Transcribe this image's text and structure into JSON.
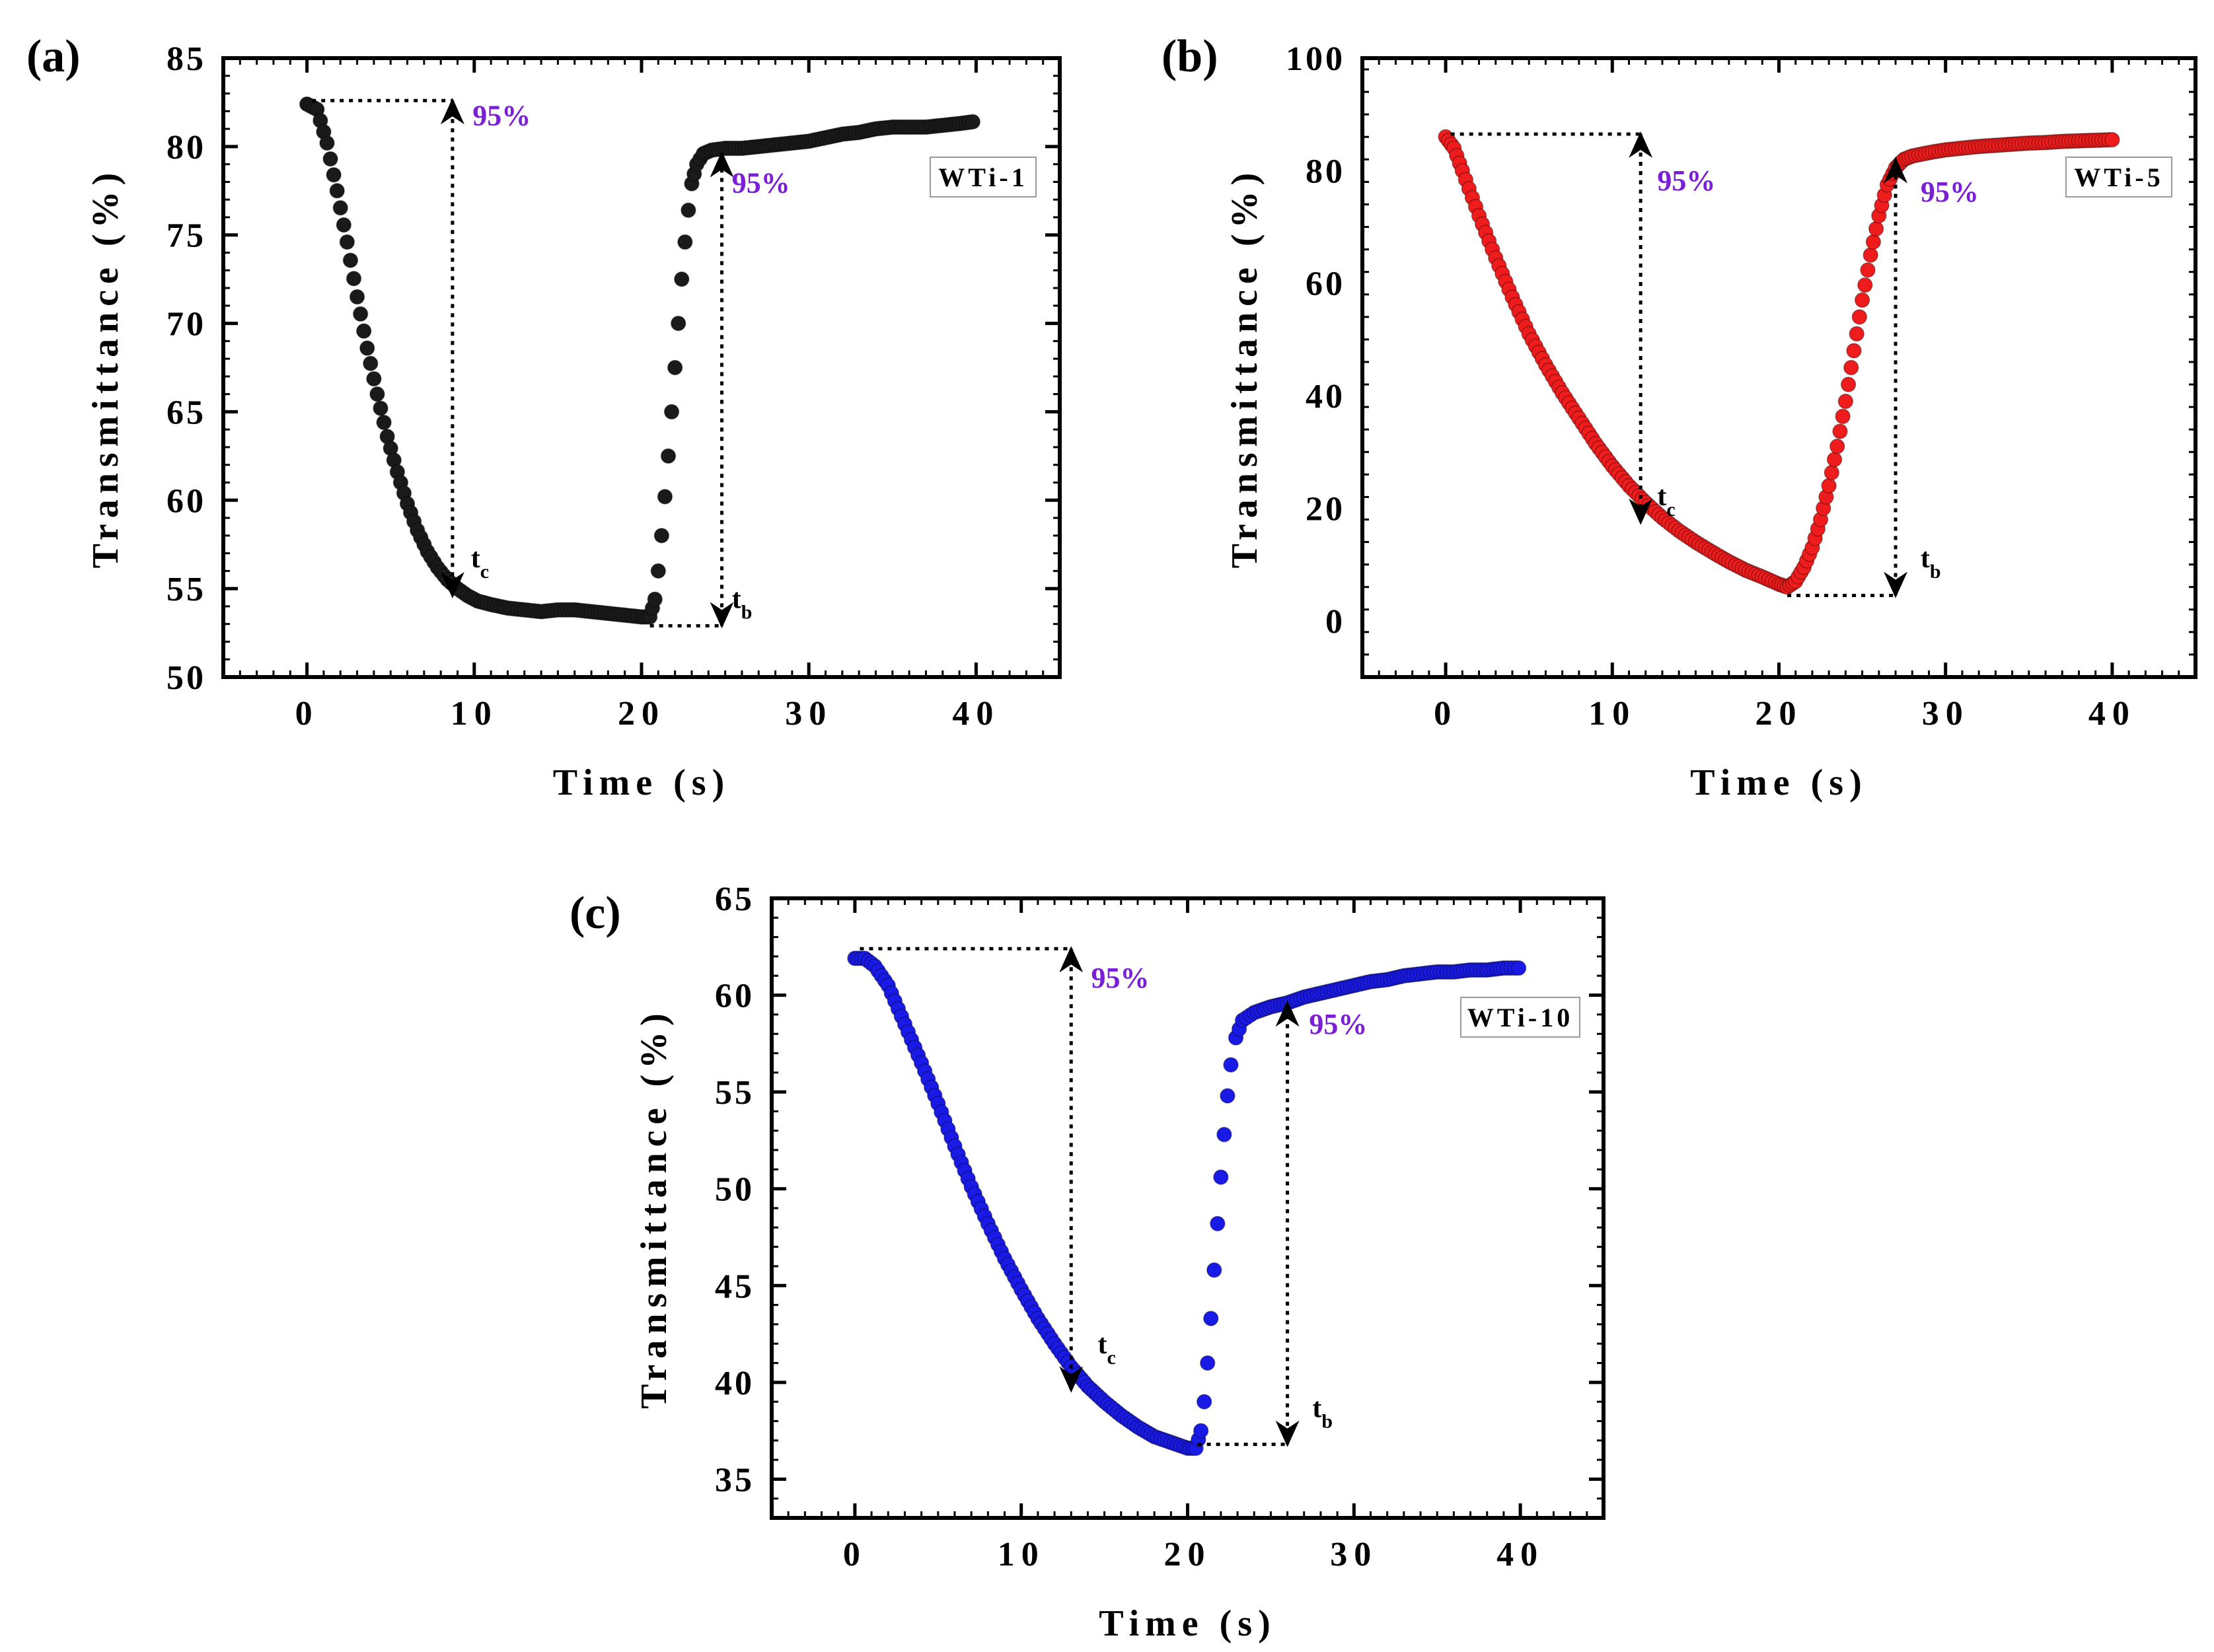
{
  "chart_data": [
    {
      "id": "a",
      "panel_label": "(a)",
      "type": "scatter",
      "sample": "WTi-1",
      "color": "#1a1a1a",
      "xlabel": "Time (s)",
      "ylabel": "Transmittance (%)",
      "xlim": [
        -5,
        45
      ],
      "ylim": [
        50,
        85
      ],
      "xticks": [
        0,
        10,
        20,
        30,
        40
      ],
      "yticks": [
        50,
        55,
        60,
        65,
        70,
        75,
        80,
        85
      ],
      "series_points": [
        [
          0,
          82.4
        ],
        [
          0.6,
          82.1
        ],
        [
          1.2,
          80.2
        ],
        [
          1.8,
          77.5
        ],
        [
          2.4,
          74.6
        ],
        [
          3,
          71.5
        ],
        [
          3.6,
          68.6
        ],
        [
          4.2,
          66
        ],
        [
          4.8,
          63.6
        ],
        [
          5.4,
          61.6
        ],
        [
          6,
          59.8
        ],
        [
          6.6,
          58.3
        ],
        [
          7.2,
          57.1
        ],
        [
          7.8,
          56.2
        ],
        [
          8.4,
          55.5
        ],
        [
          9,
          55
        ],
        [
          9.6,
          54.6
        ],
        [
          10.2,
          54.3
        ],
        [
          11,
          54.1
        ],
        [
          12,
          53.9
        ],
        [
          13,
          53.8
        ],
        [
          14,
          53.7
        ],
        [
          15,
          53.8
        ],
        [
          16,
          53.8
        ],
        [
          17,
          53.7
        ],
        [
          18,
          53.6
        ],
        [
          19,
          53.5
        ],
        [
          20,
          53.4
        ],
        [
          20.5,
          53.4
        ],
        [
          20.8,
          54.4
        ],
        [
          21.0,
          56
        ],
        [
          21.2,
          58
        ],
        [
          21.4,
          60.2
        ],
        [
          21.6,
          62.5
        ],
        [
          21.8,
          65
        ],
        [
          22.0,
          67.5
        ],
        [
          22.2,
          70
        ],
        [
          22.4,
          72.5
        ],
        [
          22.6,
          74.6
        ],
        [
          22.8,
          76.4
        ],
        [
          23.0,
          77.9
        ],
        [
          23.3,
          79
        ],
        [
          23.7,
          79.6
        ],
        [
          24.2,
          79.8
        ],
        [
          25,
          79.9
        ],
        [
          26,
          79.9
        ],
        [
          27,
          80
        ],
        [
          28,
          80.1
        ],
        [
          29,
          80.2
        ],
        [
          30,
          80.3
        ],
        [
          31,
          80.5
        ],
        [
          32,
          80.7
        ],
        [
          33,
          80.8
        ],
        [
          34,
          81
        ],
        [
          35,
          81.1
        ],
        [
          36,
          81.1
        ],
        [
          37,
          81.1
        ],
        [
          38,
          81.2
        ],
        [
          39,
          81.3
        ],
        [
          39.8,
          81.4
        ]
      ],
      "ann_baseline_x": [
        0.3,
        8.7
      ],
      "annotations": [
        {
          "text": "95%",
          "x": 8.7,
          "y_from": 82.6,
          "y_to": 54.6,
          "label_x": 9.9,
          "label_y": 81.2,
          "tlab": "t",
          "tsub": "c",
          "tlab_x": 9.8,
          "tlab_y": 56.2
        },
        {
          "text": "95%",
          "x": 24.8,
          "y_from": 52.9,
          "y_to": 79.6,
          "label_x": 25.4,
          "label_y": 77.4,
          "tlab": "t",
          "tsub": "b",
          "tlab_x": 25.4,
          "tlab_y": 53.9,
          "base_from": 20.5
        }
      ]
    },
    {
      "id": "b",
      "panel_label": "(b)",
      "type": "scatter",
      "sample": "WTi-5",
      "color": "#ee1c1c",
      "xlabel": "Time (s)",
      "ylabel": "Transmittance (%)",
      "xlim": [
        -5,
        45
      ],
      "ylim": [
        -10,
        100
      ],
      "xticks": [
        0,
        10,
        20,
        30,
        40
      ],
      "yticks": [
        0,
        20,
        40,
        60,
        80,
        100
      ],
      "series_points": [
        [
          0,
          86
        ],
        [
          0.5,
          84
        ],
        [
          1,
          80
        ],
        [
          2,
          72
        ],
        [
          3,
          64.5
        ],
        [
          4,
          57.5
        ],
        [
          5,
          51
        ],
        [
          6,
          45.5
        ],
        [
          7,
          40.5
        ],
        [
          8,
          36
        ],
        [
          9,
          31.5
        ],
        [
          10,
          27.5
        ],
        [
          11,
          24
        ],
        [
          12,
          21
        ],
        [
          13,
          18.3
        ],
        [
          14,
          16
        ],
        [
          15,
          14
        ],
        [
          16,
          12.2
        ],
        [
          17,
          10.5
        ],
        [
          18,
          9
        ],
        [
          19,
          7.8
        ],
        [
          20,
          6.5
        ],
        [
          20.5,
          6
        ],
        [
          21,
          7
        ],
        [
          21.5,
          9.5
        ],
        [
          22,
          13
        ],
        [
          22.5,
          18
        ],
        [
          23,
          24
        ],
        [
          23.5,
          31
        ],
        [
          24,
          39
        ],
        [
          24.5,
          48
        ],
        [
          25,
          57
        ],
        [
          25.5,
          65
        ],
        [
          26,
          72
        ],
        [
          26.5,
          77.5
        ],
        [
          27,
          80.5
        ],
        [
          27.5,
          82
        ],
        [
          28,
          82.6
        ],
        [
          29,
          83.2
        ],
        [
          30,
          83.7
        ],
        [
          31,
          84
        ],
        [
          32,
          84.3
        ],
        [
          33,
          84.5
        ],
        [
          34,
          84.7
        ],
        [
          35,
          84.9
        ],
        [
          36,
          85
        ],
        [
          37,
          85.2
        ],
        [
          38,
          85.3
        ],
        [
          39,
          85.4
        ],
        [
          40,
          85.5
        ]
      ],
      "ann_baseline_x": [
        0.3,
        11.7
      ],
      "annotations": [
        {
          "text": "95%",
          "x": 11.7,
          "y_from": 86.5,
          "y_to": 17.5,
          "label_x": 12.7,
          "label_y": 76.5,
          "tlab": "t",
          "tsub": "c",
          "tlab_x": 12.7,
          "tlab_y": 20.5
        },
        {
          "text": "95%",
          "x": 27,
          "y_from": 4.5,
          "y_to": 82,
          "label_x": 28.5,
          "label_y": 74.5,
          "tlab": "t",
          "tsub": "b",
          "tlab_x": 28.5,
          "tlab_y": 9.5,
          "base_from": 20.5
        }
      ]
    },
    {
      "id": "c",
      "panel_label": "(c)",
      "type": "scatter",
      "sample": "WTi-10",
      "color": "#1a1ae6",
      "xlabel": "Time (s)",
      "ylabel": "Transmittance (%)",
      "xlim": [
        -5,
        45
      ],
      "ylim": [
        33,
        65
      ],
      "xticks": [
        0,
        10,
        20,
        30,
        40
      ],
      "yticks": [
        35,
        40,
        45,
        50,
        55,
        60,
        65
      ],
      "series_points": [
        [
          0,
          61.9
        ],
        [
          0.6,
          61.9
        ],
        [
          1.2,
          61.5
        ],
        [
          2,
          60.5
        ],
        [
          3,
          58.5
        ],
        [
          4,
          56.5
        ],
        [
          5,
          54.4
        ],
        [
          6,
          52.2
        ],
        [
          7,
          50.1
        ],
        [
          8,
          48.2
        ],
        [
          9,
          46.4
        ],
        [
          10,
          44.8
        ],
        [
          11,
          43.3
        ],
        [
          12,
          42
        ],
        [
          13,
          40.8
        ],
        [
          14,
          39.8
        ],
        [
          15,
          39
        ],
        [
          16,
          38.3
        ],
        [
          17,
          37.7
        ],
        [
          18,
          37.2
        ],
        [
          19,
          36.9
        ],
        [
          20,
          36.6
        ],
        [
          20.5,
          36.6
        ],
        [
          20.8,
          37.5
        ],
        [
          21.0,
          39
        ],
        [
          21.2,
          41
        ],
        [
          21.4,
          43.3
        ],
        [
          21.6,
          45.8
        ],
        [
          21.8,
          48.2
        ],
        [
          22.0,
          50.6
        ],
        [
          22.2,
          52.8
        ],
        [
          22.4,
          54.8
        ],
        [
          22.6,
          56.4
        ],
        [
          22.9,
          57.8
        ],
        [
          23.3,
          58.7
        ],
        [
          24,
          59.1
        ],
        [
          25,
          59.4
        ],
        [
          26,
          59.6
        ],
        [
          27,
          59.9
        ],
        [
          28,
          60.1
        ],
        [
          29,
          60.3
        ],
        [
          30,
          60.5
        ],
        [
          31,
          60.7
        ],
        [
          32,
          60.8
        ],
        [
          33,
          61
        ],
        [
          34,
          61.1
        ],
        [
          35,
          61.2
        ],
        [
          36,
          61.2
        ],
        [
          37,
          61.3
        ],
        [
          38,
          61.3
        ],
        [
          39,
          61.4
        ],
        [
          39.9,
          61.4
        ]
      ],
      "ann_baseline_x": [
        0.3,
        13
      ],
      "annotations": [
        {
          "text": "95%",
          "x": 13,
          "y_from": 62.4,
          "y_to": 39.6,
          "label_x": 14.2,
          "label_y": 60.4,
          "tlab": "t",
          "tsub": "c",
          "tlab_x": 14.6,
          "tlab_y": 41.5
        },
        {
          "text": "95%",
          "x": 26,
          "y_from": 36.8,
          "y_to": 59.6,
          "label_x": 27.3,
          "label_y": 58,
          "tlab": "t",
          "tsub": "b",
          "tlab_x": 27.5,
          "tlab_y": 38.2,
          "base_from": 20.6
        }
      ]
    }
  ]
}
